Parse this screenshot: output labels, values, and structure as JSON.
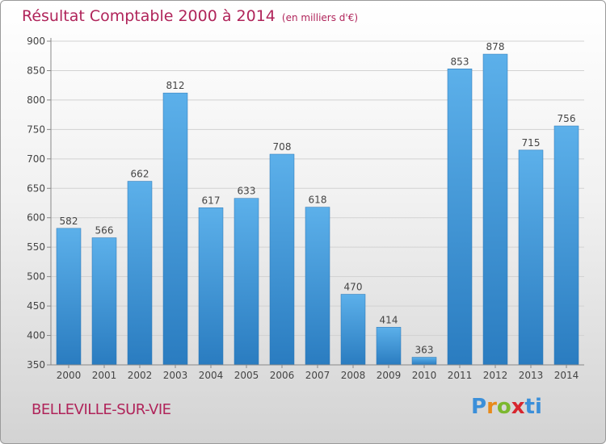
{
  "title": "Résultat Comptable 2000 à 2014",
  "subtitle": "(en milliers d'€)",
  "city": "BELLEVILLE-SUR-VIE",
  "logo": {
    "p": "P",
    "r": "r",
    "o": "o",
    "x": "x",
    "i": "i",
    "t": "ti"
  },
  "colors": {
    "title": "#b0245a",
    "bar_top": "#5cb0ea",
    "bar_bottom": "#2a7cc0"
  },
  "chart_data": {
    "type": "bar",
    "categories": [
      "2000",
      "2001",
      "2002",
      "2003",
      "2004",
      "2005",
      "2006",
      "2007",
      "2008",
      "2009",
      "2010",
      "2011",
      "2012",
      "2013",
      "2014"
    ],
    "values": [
      582,
      566,
      662,
      812,
      617,
      633,
      708,
      618,
      470,
      414,
      363,
      853,
      878,
      715,
      756
    ],
    "yticks": [
      350,
      400,
      450,
      500,
      550,
      600,
      650,
      700,
      750,
      800,
      850,
      900
    ],
    "ylim": [
      350,
      900
    ],
    "grid": true
  }
}
